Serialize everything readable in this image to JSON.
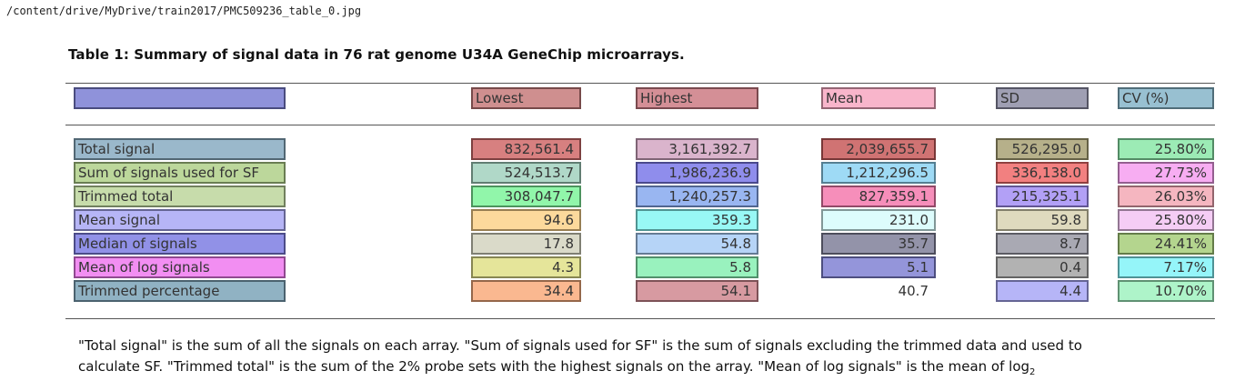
{
  "file_path": "/content/drive/MyDrive/train2017/PMC509236_table_0.jpg",
  "table": {
    "title": "Table 1: Summary of signal data in 76 rat genome U34A GeneChip microarrays.",
    "headers": [
      "",
      "Lowest",
      "Highest",
      "Mean",
      "SD",
      "CV (%)"
    ],
    "rows": [
      {
        "label": "Total signal",
        "lowest": "832,561.4",
        "highest": "3,161,392.7",
        "mean": "2,039,655.7",
        "sd": "526,295.0",
        "cv": "25.80%"
      },
      {
        "label": "Sum of signals used for SF",
        "lowest": "524,513.7",
        "highest": "1,986,236.9",
        "mean": "1,212,296.5",
        "sd": "336,138.0",
        "cv": "27.73%"
      },
      {
        "label": "Trimmed total",
        "lowest": "308,047.7",
        "highest": "1,240,257.3",
        "mean": "827,359.1",
        "sd": "215,325.1",
        "cv": "26.03%"
      },
      {
        "label": "Mean signal",
        "lowest": "94.6",
        "highest": "359.3",
        "mean": "231.0",
        "sd": "59.8",
        "cv": "25.80%"
      },
      {
        "label": "Median of signals",
        "lowest": "17.8",
        "highest": "54.8",
        "mean": "35.7",
        "sd": "8.7",
        "cv": "24.41%"
      },
      {
        "label": "Mean of log signals",
        "lowest": "4.3",
        "highest": "5.8",
        "mean": "5.1",
        "sd": "0.4",
        "cv": "7.17%"
      },
      {
        "label": "Trimmed percentage",
        "lowest": "34.4",
        "highest": "54.1",
        "mean": "40.7",
        "sd": "4.4",
        "cv": "10.70%"
      }
    ],
    "footnote_lines": [
      "\"Total signal\" is the sum of all the signals on each array. \"Sum of signals used for SF\" is the sum of signals excluding the trimmed data and used to",
      "calculate SF. \"Trimmed total\" is the sum of the 2% probe sets with the highest signals on the array. \"Mean of log signals\" is the mean of log"
    ],
    "footnote_subscript": "2"
  },
  "overlay_colors": {
    "header": [
      "#7b7fd4",
      "#c77b7b",
      "#cc7b84",
      "#f7a8c2",
      "#8e8ea6",
      "#86b5c9"
    ],
    "rows": [
      [
        "#88acc2",
        "#d06a6a",
        "#d4a7c3",
        "#c85b5b",
        "#a9a275",
        "#8be8a8"
      ],
      [
        "#b0d08a",
        "#a2d1be",
        "#7b79e9",
        "#8dd3f3",
        "#f06a6a",
        "#f69ff0"
      ],
      [
        "#bdd69c",
        "#7ef59b",
        "#87a9ee",
        "#f47aae",
        "#a48ff5",
        "#f3a9b5"
      ],
      [
        "#a9a8f5",
        "#fbd28b",
        "#86f7f3",
        "#d7fbfc",
        "#d9d4b3",
        "#f3c4f3"
      ],
      [
        "#7e7ee3",
        "#d4d4c0",
        "#a9cdf6",
        "#80809a",
        "#9a9aa6",
        "#a7ce7a"
      ],
      [
        "#f07af0",
        "#e1e088",
        "#87f0b3",
        "#8182d4",
        "#a5a5a5",
        "#83f3f8"
      ],
      [
        "#7da4b9",
        "#f9ab7c",
        "#d08891",
        "",
        "#a9a8f6",
        "#a0f2bf"
      ]
    ]
  }
}
